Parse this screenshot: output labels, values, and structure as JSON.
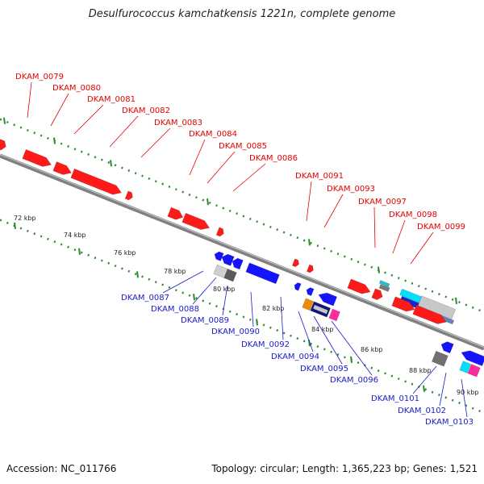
{
  "title": "Desulfurococcus kamchatkensis 1221n, complete genome",
  "footer": {
    "accession_label": "Accession:",
    "accession_value": "NC_011766",
    "topology_label": "Topology:",
    "topology_value": "circular",
    "length_label": "Length:",
    "length_value": "1,365,223 bp",
    "genes_label": "Genes:",
    "genes_value": "1,521"
  },
  "colors": {
    "forward_gene": "#ff1a1a",
    "reverse_gene": "#1414ff",
    "label_forward": "#e60000",
    "label_reverse": "#1a1acc",
    "backbone": "#808080",
    "dotted_track": "#2e8b2e"
  },
  "ticks": [
    "72 kbp",
    "74 kbp",
    "76 kbp",
    "78 kbp",
    "80 kbp",
    "82 kbp",
    "84 kbp",
    "86 kbp",
    "88 kbp",
    "90 kbp"
  ],
  "forward_labels": [
    "DKAM_0079",
    "DKAM_0080",
    "DKAM_0081",
    "DKAM_0082",
    "DKAM_0083",
    "DKAM_0084",
    "DKAM_0085",
    "DKAM_0086",
    "DKAM_0091",
    "DKAM_0093",
    "DKAM_0097",
    "DKAM_0098",
    "DKAM_0099"
  ],
  "reverse_labels": [
    "DKAM_0087",
    "DKAM_0088",
    "DKAM_0089",
    "DKAM_0090",
    "DKAM_0092",
    "DKAM_0094",
    "DKAM_0095",
    "DKAM_0096",
    "DKAM_0101",
    "DKAM_0102",
    "DKAM_0103"
  ]
}
